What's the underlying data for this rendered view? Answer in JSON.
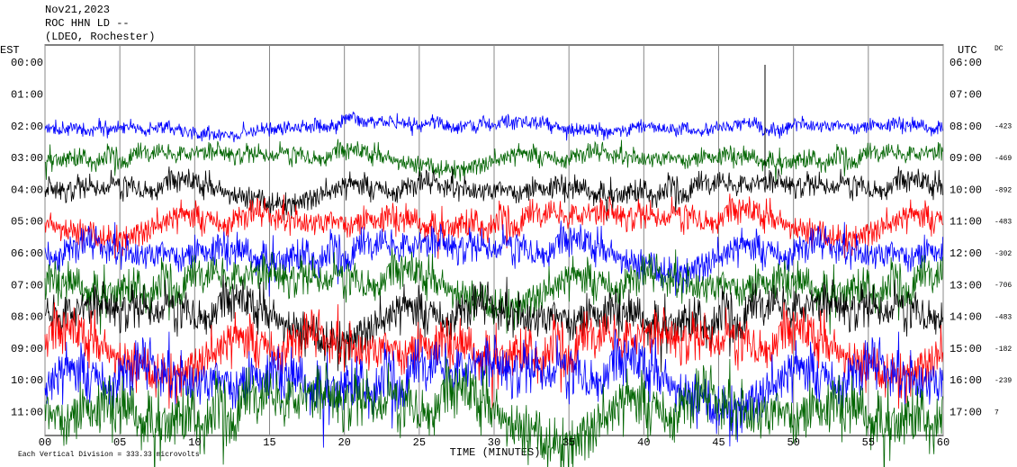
{
  "header": {
    "date": "Nov21,2023",
    "station": "ROC HHN LD --",
    "network": "(LDEO, Rochester)"
  },
  "left_axis": {
    "label": "EST",
    "ticks": [
      "00:00",
      "01:00",
      "02:00",
      "03:00",
      "04:00",
      "05:00",
      "06:00",
      "07:00",
      "08:00",
      "09:00",
      "10:00",
      "11:00"
    ]
  },
  "right_axis": {
    "label": "UTC",
    "ticks": [
      "06:00",
      "07:00",
      "08:00",
      "09:00",
      "10:00",
      "11:00",
      "12:00",
      "13:00",
      "14:00",
      "15:00",
      "16:00",
      "17:00"
    ]
  },
  "dc": {
    "label": "DC",
    "values": [
      null,
      null,
      -423,
      -469,
      -892,
      -483,
      -302,
      -706,
      -483,
      -182,
      -239,
      7
    ]
  },
  "x_axis": {
    "label": "TIME (MINUTES)",
    "lim": [
      0,
      60
    ],
    "ticks": [
      {
        "value": 0,
        "label": "00"
      },
      {
        "value": 5,
        "label": "05"
      },
      10,
      15,
      20,
      25,
      30,
      35,
      40,
      45,
      50,
      55,
      60
    ]
  },
  "trace_colors": [
    "#000000",
    "#ff0000",
    "#0000ff",
    "#006400"
  ],
  "footnote": "Each Vertical Division =  333.33 microvolts"
}
